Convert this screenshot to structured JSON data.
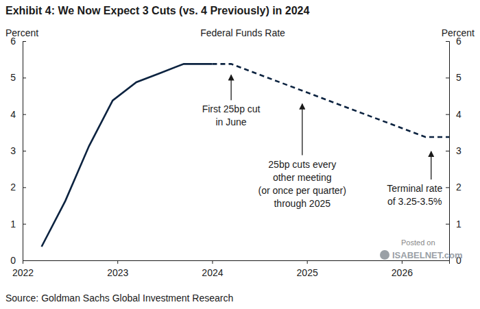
{
  "chart_data": {
    "type": "line",
    "title": "Exhibit 4: We Now Expect 3 Cuts (vs. 4 Previously) in 2024",
    "subtitle": "Federal Funds Rate",
    "y_label": "Percent",
    "y2_label": "Percent",
    "source": "Source: Goldman Sachs Global Investment Research",
    "watermark": [
      "Posted on",
      "ISABELNET.com"
    ],
    "x": [
      2022.2,
      2022.45,
      2022.7,
      2022.95,
      2023.2,
      2023.45,
      2023.7,
      2024.0,
      2024.2,
      2026.25,
      2026.5
    ],
    "series": [
      {
        "color": "#0c2340",
        "line_style": "solid",
        "values": [
          0.375,
          1.625,
          3.125,
          4.375,
          4.875,
          5.125,
          5.375,
          5.375,
          null,
          null,
          null
        ]
      },
      {
        "color": "#0c2340",
        "line_style": "dashed",
        "values": [
          null,
          null,
          null,
          null,
          null,
          null,
          null,
          5.375,
          5.375,
          3.375,
          3.375
        ]
      }
    ],
    "xlim": [
      2022,
      2026.5
    ],
    "xticks": [
      2022,
      2023,
      2024,
      2025,
      2026
    ],
    "ylim": [
      0,
      6
    ],
    "yticks": [
      0,
      1,
      2,
      3,
      4,
      5,
      6
    ],
    "y2lim": [
      0,
      6
    ],
    "y2ticks": [
      0,
      1,
      2,
      3,
      4,
      5,
      6
    ],
    "grid": false,
    "annotations": [
      {
        "text": [
          "First 25bp cut",
          "in June"
        ],
        "x": 2024.2,
        "y": 5.375
      },
      {
        "text": [
          "25bp cuts every",
          "other meeting",
          "(or once per quarter)",
          "through 2025"
        ],
        "x": 2024.95,
        "y": 4.64
      },
      {
        "text": [
          "Terminal rate",
          "of 3.25-3.5%"
        ],
        "x": 2026.31,
        "y": 3.375
      }
    ]
  }
}
